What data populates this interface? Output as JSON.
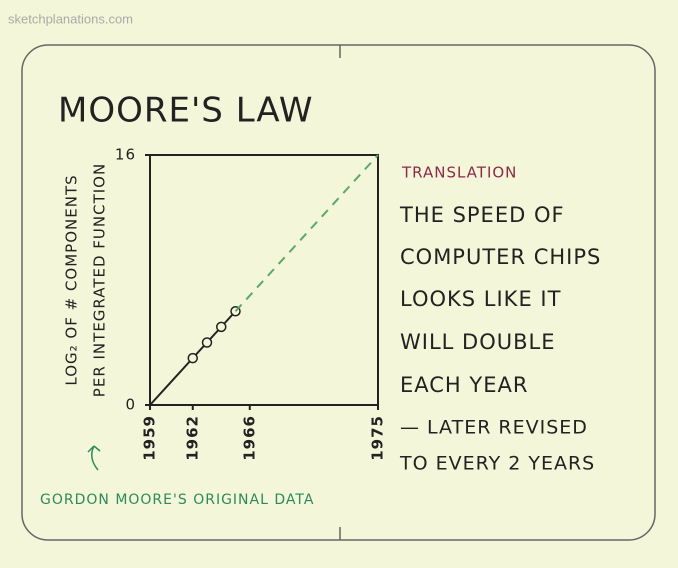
{
  "source": "sketchplanations.com",
  "chart_data": {
    "type": "line",
    "title": "MOORE'S LAW",
    "ylabel": [
      "LOG₂ OF # COMPONENTS",
      "PER INTEGRATED FUNCTION"
    ],
    "xlim": [
      1959,
      1975
    ],
    "xticks": [
      1959,
      1962,
      1966,
      1975
    ],
    "ylim": [
      0,
      16
    ],
    "yticks": [
      0,
      16
    ],
    "series": [
      {
        "x": [
          1959,
          1962,
          1963,
          1964,
          1965
        ],
        "values": [
          0,
          3,
          4,
          5,
          6
        ],
        "color": "#222222",
        "style": "solid",
        "markers": true
      },
      {
        "x": [
          1965,
          1975
        ],
        "values": [
          6,
          16
        ],
        "color": "#5aa86a",
        "style": "dashed",
        "markers": false
      }
    ],
    "annotation": "GORDON MOORE'S ORIGINAL DATA"
  },
  "translation": {
    "heading": "TRANSLATION",
    "lines": [
      "THE SPEED OF",
      "COMPUTER CHIPS",
      "LOOKS LIKE IT",
      "WILL DOUBLE",
      "EACH YEAR"
    ],
    "revision": [
      "— LATER REVISED",
      "TO EVERY 2 YEARS"
    ]
  }
}
